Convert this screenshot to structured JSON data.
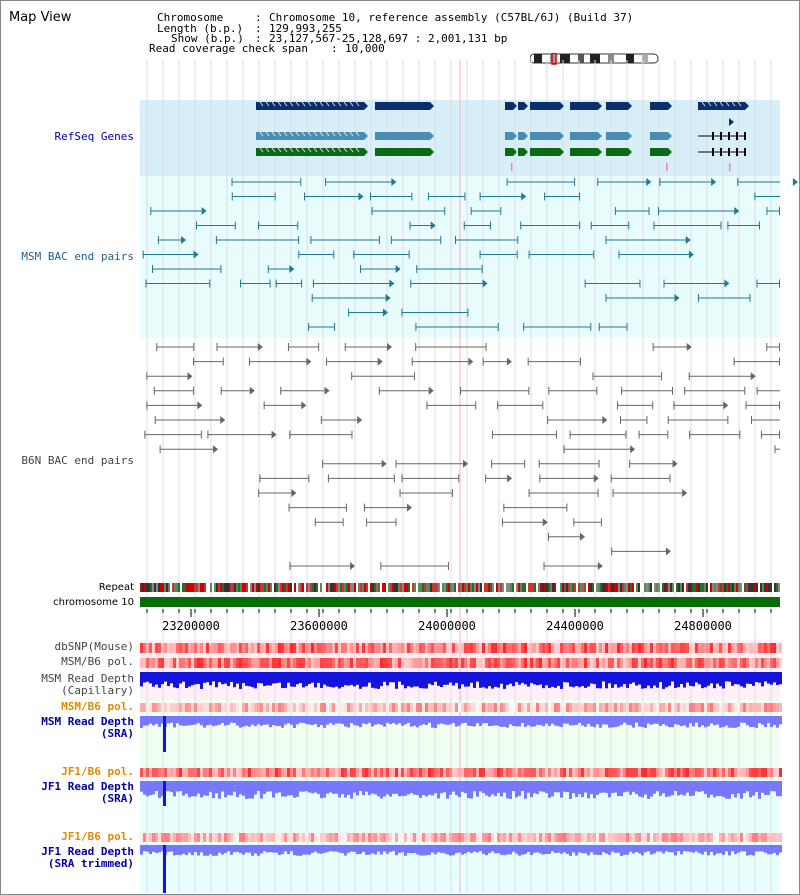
{
  "title": "Map View",
  "header": {
    "chromosome_label": "Chromosome",
    "chromosome_value": "Chromosome 10, reference assembly (C57BL/6J) (Build 37)",
    "length_label": "Length (b.p.)",
    "length_value": "129,993,255",
    "show_label": "Show (b.p.)",
    "show_value": "23,127,567-25,128,697 : 2,001,131 bp",
    "coverage_label": "Read coverage check span",
    "coverage_value": "10,000"
  },
  "tracks": {
    "refseq": "RefSeq Genes",
    "msm_bac": "MSM BAC end pairs",
    "b6n_bac": "B6N BAC end pairs",
    "repeat": "Repeat",
    "chromosome": "chromosome 10",
    "dbsnp": "dbSNP(Mouse)",
    "msm_b6_pol": "MSM/B6 pol.",
    "msm_depth_cap_1": "MSM Read Depth",
    "msm_depth_cap_2": "(Capillary)",
    "msm_b6_pol_2": "MSM/B6 pol.",
    "msm_depth_sra_1": "MSM Read Depth",
    "msm_depth_sra_2": "(SRA)",
    "jf1_b6_pol": "JF1/B6 pol.",
    "jf1_depth_sra_1": "JF1 Read Depth",
    "jf1_depth_sra_2": "(SRA)",
    "jf1_b6_pol_2": "JF1/B6 pol.",
    "jf1_depth_trim_1": "JF1 Read Depth",
    "jf1_depth_trim_2": "(SRA trimmed)"
  },
  "ruler": {
    "ticks": [
      "23200000",
      "23600000",
      "24000000",
      "24400000",
      "24800000"
    ]
  },
  "colors": {
    "refseq_bg": "#d8eef8",
    "msm_bg": "#e8fbfd",
    "b6n_bg": "#ffffff",
    "gene_dark": "#0c2e6b",
    "gene_mid": "#4a8db5",
    "gene_green": "#0a6b14",
    "msm_pair": "#1f7a93",
    "b6n_pair": "#666666",
    "chrom_bar": "#0a6b0a",
    "orange_label": "#e08a00",
    "blue_label": "#0000a0",
    "depth_dark": "#1414dc",
    "depth_light": "#7878ff"
  }
}
